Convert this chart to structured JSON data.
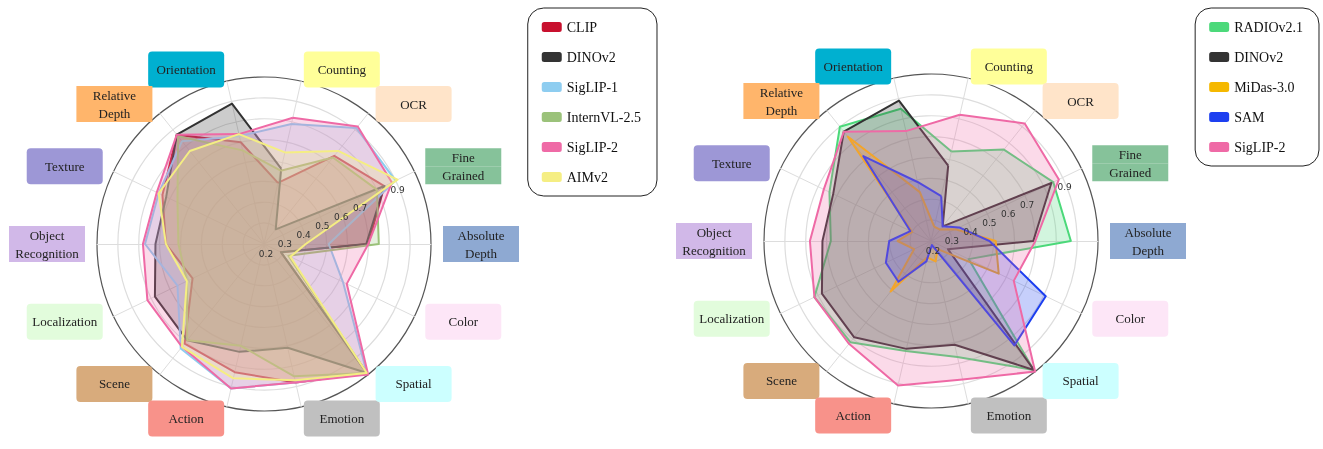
{
  "chart_data": [
    {
      "type": "radar",
      "categories": [
        "Counting",
        "OCR",
        "Fine Grained",
        "Absolute Depth",
        "Color",
        "Spatial",
        "Emotion",
        "Action",
        "Scene",
        "Localization",
        "Object Recognition",
        "Texture",
        "Relative Depth",
        "Orientation"
      ],
      "ylim": [
        0.2,
        1.0
      ],
      "yticks": [
        0.2,
        0.3,
        0.4,
        0.5,
        0.6,
        0.7,
        0.9
      ],
      "grid": true,
      "legend": "top right",
      "marker": "none",
      "series": [
        {
          "name": "CLIP",
          "color": "#c8102e",
          "values": [
            0.5,
            0.74,
            0.84,
            0.7,
            0.29,
            0.99,
            0.88,
            0.83,
            0.81,
            0.58,
            0.67,
            0.74,
            0.87,
            0.7
          ]
        },
        {
          "name": "DINOv2",
          "color": "#333333",
          "values": [
            0.57,
            0.29,
            0.84,
            0.69,
            0.29,
            0.99,
            0.71,
            0.73,
            0.79,
            0.78,
            0.72,
            0.72,
            0.87,
            0.89
          ]
        },
        {
          "name": "SigLIP-1",
          "color": "#8ecdf0",
          "values": [
            0.79,
            0.91,
            0.9,
            0.51,
            0.62,
            0.99,
            0.88,
            0.91,
            0.84,
            0.66,
            0.77,
            0.76,
            0.83,
            0.73
          ]
        },
        {
          "name": "InternVL-2.5",
          "color": "#9bc27a",
          "values": [
            0.56,
            0.73,
            0.8,
            0.75,
            0.33,
            0.99,
            0.85,
            0.7,
            0.79,
            0.61,
            0.61,
            0.66,
            0.86,
            0.66
          ]
        },
        {
          "name": "SigLIP-2",
          "color": "#ef6aa6",
          "values": [
            0.82,
            0.92,
            0.88,
            0.7,
            0.64,
            1.0,
            0.88,
            0.91,
            0.83,
            0.82,
            0.78,
            0.77,
            0.87,
            0.74
          ]
        },
        {
          "name": "AIMv2",
          "color": "#f5ee83",
          "values": [
            0.65,
            0.77,
            0.91,
            0.4,
            0.34,
            0.99,
            0.87,
            0.86,
            0.83,
            0.61,
            0.67,
            0.76,
            0.77,
            0.74
          ]
        }
      ]
    },
    {
      "type": "radar",
      "categories": [
        "Counting",
        "OCR",
        "Fine Grained",
        "Absolute Depth",
        "Color",
        "Spatial",
        "Emotion",
        "Action",
        "Scene",
        "Localization",
        "Object Recognition",
        "Texture",
        "Relative Depth",
        "Orientation"
      ],
      "ylim": [
        0.2,
        1.0
      ],
      "yticks": [
        0.2,
        0.3,
        0.4,
        0.5,
        0.6,
        0.7,
        0.9
      ],
      "grid": true,
      "legend": "top right",
      "marker": "none",
      "series": [
        {
          "name": "RADIOv2.1",
          "color": "#4cd97a",
          "values": [
            0.64,
            0.76,
            0.85,
            0.87,
            0.4,
            0.99,
            0.77,
            0.74,
            0.82,
            0.82,
            0.68,
            0.74,
            0.9,
            0.85
          ]
        },
        {
          "name": "DINOv2",
          "color": "#333333",
          "values": [
            0.57,
            0.29,
            0.84,
            0.69,
            0.29,
            0.99,
            0.71,
            0.73,
            0.79,
            0.78,
            0.72,
            0.72,
            0.87,
            0.89
          ]
        },
        {
          "name": "MiDas-3.0",
          "color": "#f5b800",
          "values": [
            0.27,
            0.27,
            0.33,
            0.51,
            0.56,
            0.25,
            0.3,
            0.28,
            0.51,
            0.29,
            0.36,
            0.3,
            0.84,
            0.44
          ]
        },
        {
          "name": "SAM",
          "color": "#1d3ff0",
          "values": [
            0.42,
            0.29,
            0.35,
            0.48,
            0.81,
            0.84,
            0.22,
            0.3,
            0.45,
            0.44,
            0.4,
            0.31,
            0.72,
            0.49
          ]
        },
        {
          "name": "SigLIP-2",
          "color": "#ef6aa6",
          "values": [
            0.82,
            0.92,
            0.88,
            0.7,
            0.64,
            1.0,
            0.88,
            0.91,
            0.83,
            0.82,
            0.78,
            0.77,
            0.87,
            0.74
          ]
        }
      ]
    }
  ]
}
